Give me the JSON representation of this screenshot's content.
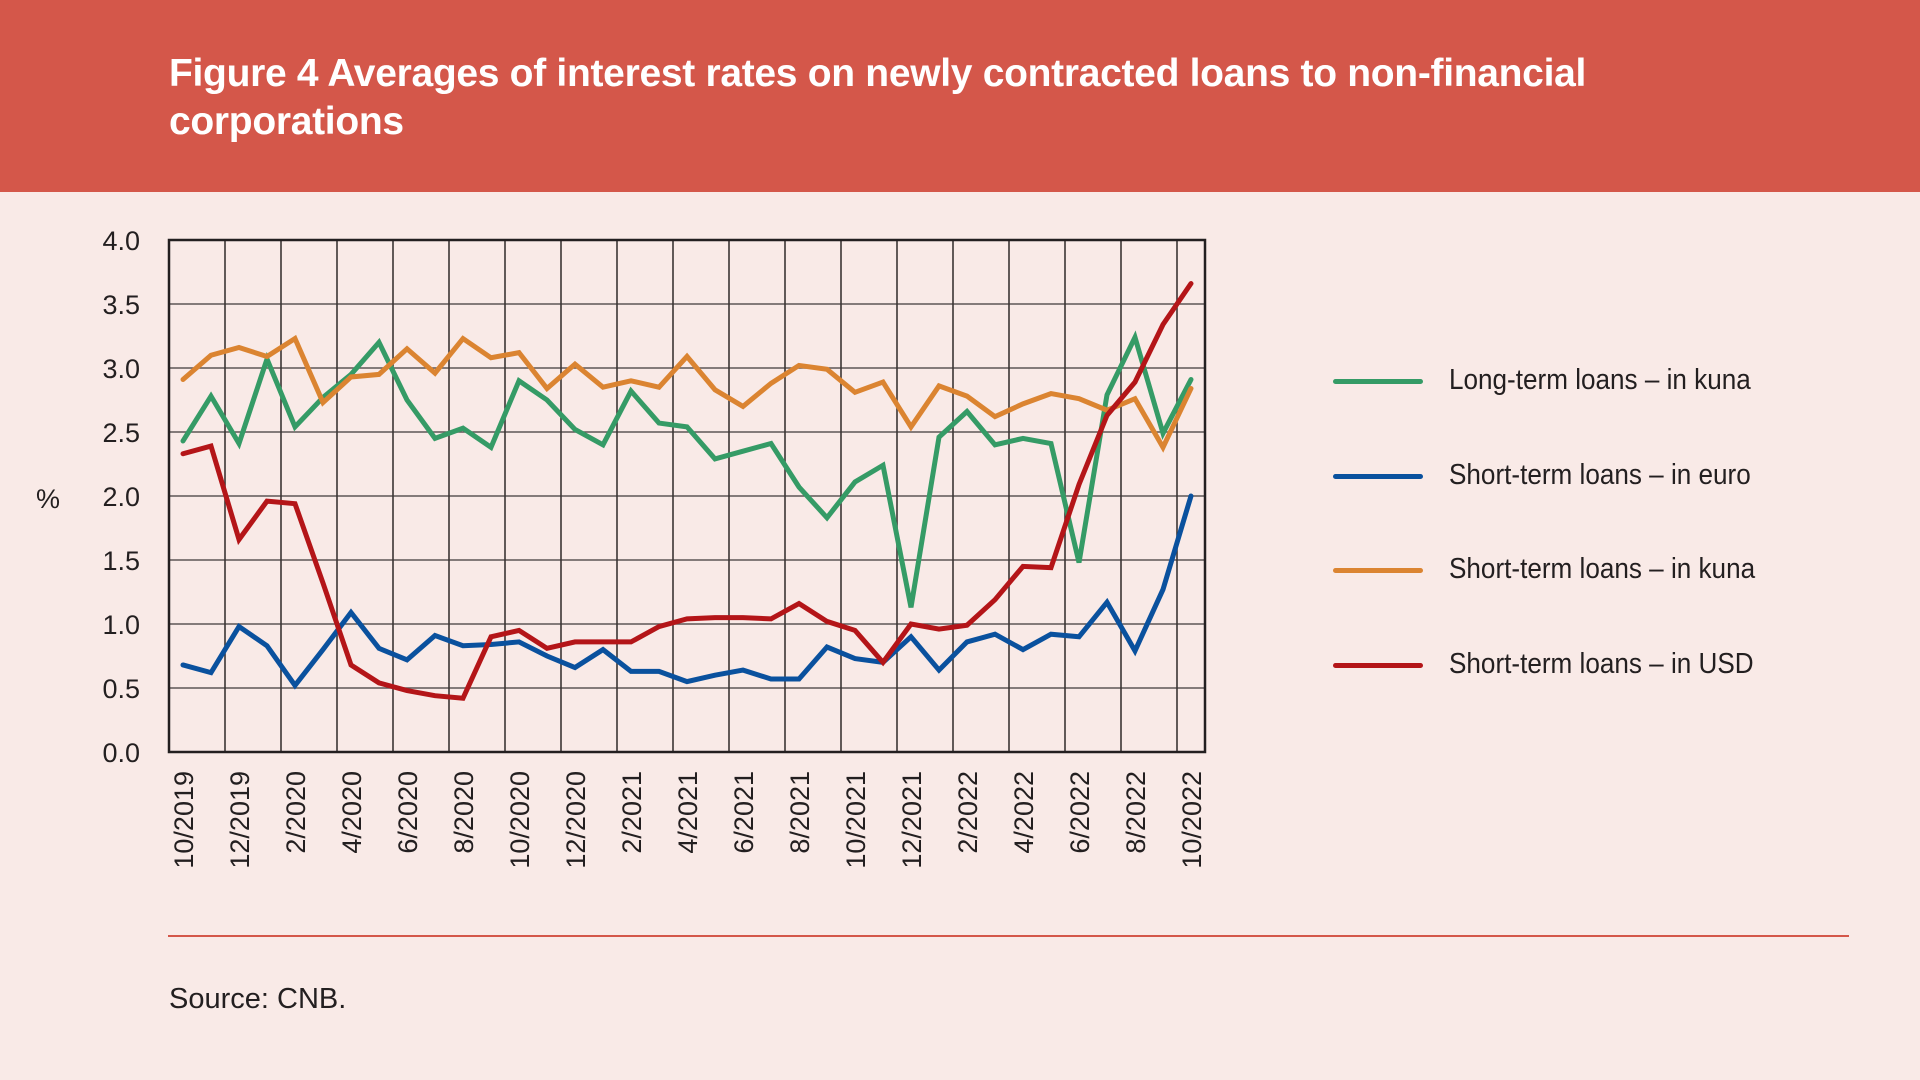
{
  "header": {
    "title": "Figure 4 Averages of interest rates on newly contracted loans to non-financial corporations"
  },
  "footer": {
    "source": "Source: CNB."
  },
  "chart_data": {
    "type": "line",
    "title": "Figure 4 Averages of interest rates on newly contracted loans to non-financial corporations",
    "xlabel": "",
    "ylabel": "%",
    "ylim": [
      0,
      4
    ],
    "yticks": [
      "0.0",
      "0.5",
      "1.0",
      "1.5",
      "2.0",
      "2.5",
      "3.0",
      "3.5",
      "4.0"
    ],
    "grid": true,
    "legend_position": "right",
    "x": [
      "10/2019",
      "11/2019",
      "12/2019",
      "1/2020",
      "2/2020",
      "3/2020",
      "4/2020",
      "5/2020",
      "6/2020",
      "7/2020",
      "8/2020",
      "9/2020",
      "10/2020",
      "11/2020",
      "12/2020",
      "1/2021",
      "2/2021",
      "3/2021",
      "4/2021",
      "5/2021",
      "6/2021",
      "7/2021",
      "8/2021",
      "9/2021",
      "10/2021",
      "11/2021",
      "12/2021",
      "1/2022",
      "2/2022",
      "3/2022",
      "4/2022",
      "5/2022",
      "6/2022",
      "7/2022",
      "8/2022",
      "9/2022",
      "10/2022"
    ],
    "xtick_labels": [
      "10/2019",
      "12/2019",
      "2/2020",
      "4/2020",
      "6/2020",
      "8/2020",
      "10/2020",
      "12/2020",
      "2/2021",
      "4/2021",
      "6/2021",
      "8/2021",
      "10/2021",
      "12/2021",
      "2/2022",
      "4/2022",
      "6/2022",
      "8/2022",
      "10/2022"
    ],
    "series": [
      {
        "name": "Long-term loans – in kuna",
        "color": "#359B66",
        "values": [
          2.43,
          2.78,
          2.41,
          3.07,
          2.54,
          2.77,
          2.95,
          3.2,
          2.75,
          2.45,
          2.53,
          2.38,
          2.9,
          2.75,
          2.52,
          2.4,
          2.82,
          2.57,
          2.54,
          2.29,
          2.35,
          2.41,
          2.07,
          1.83,
          2.11,
          2.24,
          1.13,
          2.46,
          2.66,
          2.4,
          2.45,
          2.41,
          1.48,
          2.79,
          3.24,
          2.49,
          2.91
        ]
      },
      {
        "name": "Short-term loans – in euro",
        "color": "#0A519E",
        "values": [
          0.68,
          0.62,
          0.98,
          0.83,
          0.52,
          0.8,
          1.09,
          0.81,
          0.72,
          0.91,
          0.83,
          0.84,
          0.86,
          0.75,
          0.66,
          0.8,
          0.63,
          0.63,
          0.55,
          0.6,
          0.64,
          0.57,
          0.57,
          0.82,
          0.73,
          0.7,
          0.9,
          0.64,
          0.86,
          0.92,
          0.8,
          0.92,
          0.9,
          1.17,
          0.79,
          1.27,
          2.0
        ]
      },
      {
        "name": "Short-term loans – in kuna",
        "color": "#DB8431",
        "values": [
          2.91,
          3.1,
          3.16,
          3.09,
          3.23,
          2.73,
          2.93,
          2.95,
          3.15,
          2.96,
          3.23,
          3.08,
          3.12,
          2.84,
          3.03,
          2.85,
          2.9,
          2.85,
          3.09,
          2.83,
          2.7,
          2.88,
          3.02,
          2.99,
          2.81,
          2.89,
          2.54,
          2.86,
          2.78,
          2.62,
          2.72,
          2.8,
          2.76,
          2.67,
          2.76,
          2.38,
          2.84
        ]
      },
      {
        "name": "Short-term loans – in USD",
        "color": "#B41518",
        "values": [
          2.33,
          2.39,
          1.66,
          1.96,
          1.94,
          1.32,
          0.68,
          0.54,
          0.48,
          0.44,
          0.42,
          0.9,
          0.95,
          0.81,
          0.86,
          0.86,
          0.86,
          0.98,
          1.04,
          1.05,
          1.05,
          1.04,
          1.16,
          1.02,
          0.95,
          0.7,
          1.0,
          0.96,
          0.99,
          1.19,
          1.45,
          1.44,
          2.09,
          2.63,
          2.89,
          3.34,
          3.66
        ]
      }
    ]
  }
}
